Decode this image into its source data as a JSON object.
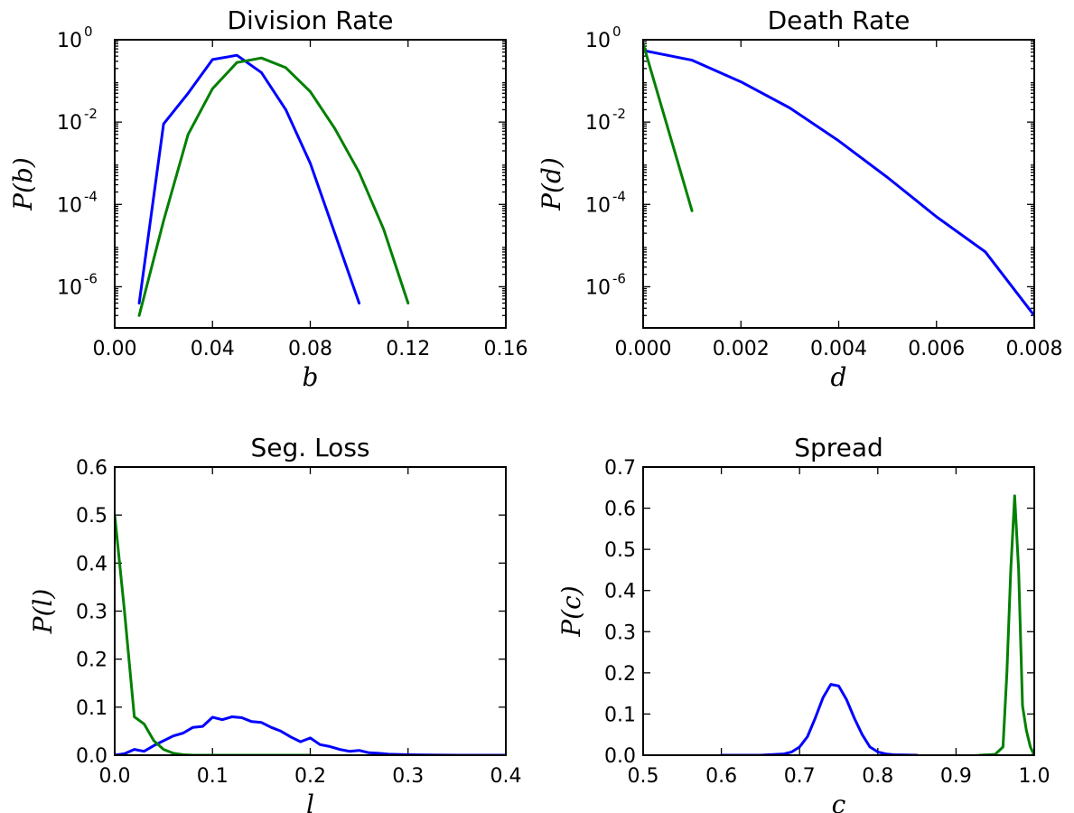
{
  "colors": {
    "blue": "#0000ff",
    "green": "#008000"
  },
  "chart_data": [
    {
      "type": "line",
      "title": "Division Rate",
      "xlabel": "b",
      "ylabel": "P(b)",
      "xscale": "linear",
      "yscale": "log",
      "xlim": [
        0,
        0.16
      ],
      "ylim": [
        1e-07,
        1
      ],
      "xticks": [
        "0.00",
        "0.04",
        "0.08",
        "0.12",
        "0.16"
      ],
      "yticks": [
        {
          "value": 1e-06,
          "base": "10",
          "exp": "-6"
        },
        {
          "value": 0.0001,
          "base": "10",
          "exp": "-4"
        },
        {
          "value": 0.01,
          "base": "10",
          "exp": "-2"
        },
        {
          "value": 1,
          "base": "10",
          "exp": "0"
        }
      ],
      "grid": false,
      "series": [
        {
          "color": "blue",
          "x": [
            0.01,
            0.02,
            0.03,
            0.04,
            0.05,
            0.06,
            0.07,
            0.08,
            0.09,
            0.1
          ],
          "y": [
            4e-07,
            0.009,
            0.05,
            0.33,
            0.42,
            0.16,
            0.02,
            0.001,
            2e-05,
            4e-07
          ]
        },
        {
          "color": "green",
          "x": [
            0.01,
            0.02,
            0.03,
            0.04,
            0.05,
            0.06,
            0.07,
            0.08,
            0.09,
            0.1,
            0.11,
            0.12
          ],
          "y": [
            2e-07,
            4e-05,
            0.005,
            0.065,
            0.28,
            0.36,
            0.21,
            0.055,
            0.007,
            0.0006,
            2.5e-05,
            4e-07
          ]
        }
      ]
    },
    {
      "type": "line",
      "title": "Death Rate",
      "xlabel": "d",
      "ylabel": "P(d)",
      "xscale": "linear",
      "yscale": "log",
      "xlim": [
        0,
        0.008
      ],
      "ylim": [
        1e-07,
        1
      ],
      "xticks": [
        "0.000",
        "0.002",
        "0.004",
        "0.006",
        "0.008"
      ],
      "yticks": [
        {
          "value": 1e-06,
          "base": "10",
          "exp": "-6"
        },
        {
          "value": 0.0001,
          "base": "10",
          "exp": "-4"
        },
        {
          "value": 0.01,
          "base": "10",
          "exp": "-2"
        },
        {
          "value": 1,
          "base": "10",
          "exp": "0"
        }
      ],
      "grid": false,
      "series": [
        {
          "color": "blue",
          "x": [
            0,
            0.001,
            0.002,
            0.003,
            0.004,
            0.005,
            0.006,
            0.007,
            0.008
          ],
          "y": [
            0.55,
            0.32,
            0.095,
            0.022,
            0.0035,
            0.00045,
            5e-05,
            7e-06,
            2e-07
          ]
        },
        {
          "color": "green",
          "x": [
            0,
            0.001
          ],
          "y": [
            0.8,
            7e-05
          ]
        }
      ]
    },
    {
      "type": "line",
      "title": "Seg. Loss",
      "xlabel": "l",
      "ylabel": "P(l)",
      "xscale": "linear",
      "yscale": "linear",
      "xlim": [
        0,
        0.4
      ],
      "ylim": [
        0,
        0.6
      ],
      "xticks": [
        "0.0",
        "0.1",
        "0.2",
        "0.3",
        "0.4"
      ],
      "yticks": [
        "0.0",
        "0.1",
        "0.2",
        "0.3",
        "0.4",
        "0.5",
        "0.6"
      ],
      "grid": false,
      "series": [
        {
          "color": "blue",
          "x": [
            0,
            0.01,
            0.02,
            0.03,
            0.04,
            0.05,
            0.06,
            0.07,
            0.08,
            0.09,
            0.1,
            0.11,
            0.12,
            0.13,
            0.14,
            0.15,
            0.16,
            0.17,
            0.18,
            0.19,
            0.2,
            0.21,
            0.22,
            0.23,
            0.24,
            0.25,
            0.26,
            0.27,
            0.28,
            0.3,
            0.32,
            0.35,
            0.4
          ],
          "y": [
            0.0,
            0.003,
            0.012,
            0.008,
            0.02,
            0.03,
            0.04,
            0.046,
            0.058,
            0.06,
            0.079,
            0.074,
            0.08,
            0.078,
            0.07,
            0.068,
            0.058,
            0.05,
            0.038,
            0.028,
            0.036,
            0.022,
            0.018,
            0.012,
            0.008,
            0.01,
            0.005,
            0.004,
            0.002,
            0.001,
            0.0005,
            0.0,
            0.0
          ]
        },
        {
          "color": "green",
          "x": [
            0,
            0.01,
            0.02,
            0.03,
            0.04,
            0.05,
            0.06,
            0.07,
            0.08,
            0.09,
            0.1,
            0.12,
            0.15,
            0.2
          ],
          "y": [
            0.5,
            0.3,
            0.08,
            0.065,
            0.03,
            0.012,
            0.004,
            0.001,
            0.0,
            0.0,
            0.0,
            0.0,
            0.0,
            0.0
          ]
        }
      ]
    },
    {
      "type": "line",
      "title": "Spread",
      "xlabel": "c",
      "ylabel": "P(c)",
      "xscale": "linear",
      "yscale": "linear",
      "xlim": [
        0.5,
        1.0
      ],
      "ylim": [
        0,
        0.7
      ],
      "xticks": [
        "0.5",
        "0.6",
        "0.7",
        "0.8",
        "0.9",
        "1.0"
      ],
      "yticks": [
        "0.0",
        "0.1",
        "0.2",
        "0.3",
        "0.4",
        "0.5",
        "0.6",
        "0.7"
      ],
      "grid": false,
      "series": [
        {
          "color": "blue",
          "x": [
            0.6,
            0.65,
            0.68,
            0.69,
            0.7,
            0.71,
            0.72,
            0.73,
            0.74,
            0.75,
            0.76,
            0.77,
            0.78,
            0.79,
            0.8,
            0.81,
            0.82,
            0.85
          ],
          "y": [
            0.0,
            0.0,
            0.003,
            0.008,
            0.02,
            0.045,
            0.09,
            0.14,
            0.172,
            0.168,
            0.135,
            0.09,
            0.05,
            0.02,
            0.008,
            0.003,
            0.001,
            0.0
          ]
        },
        {
          "color": "green",
          "x": [
            0.93,
            0.95,
            0.96,
            0.965,
            0.97,
            0.975,
            0.98,
            0.985,
            0.99,
            0.995,
            1.0
          ],
          "y": [
            0.0,
            0.002,
            0.02,
            0.2,
            0.45,
            0.63,
            0.45,
            0.12,
            0.06,
            0.02,
            0.0
          ]
        }
      ]
    }
  ]
}
